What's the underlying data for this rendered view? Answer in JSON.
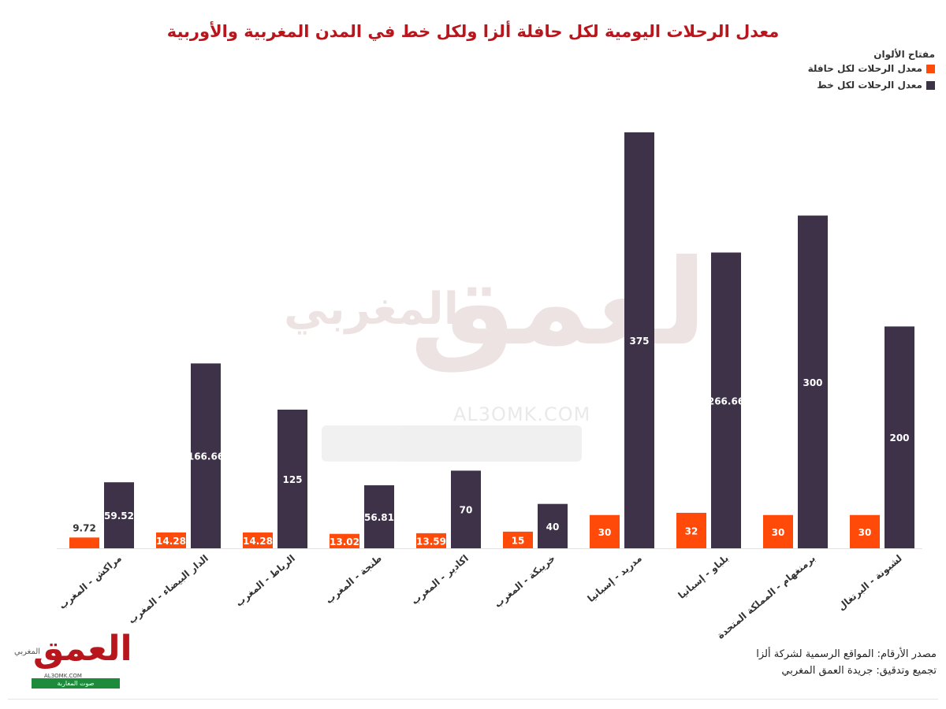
{
  "colors": {
    "title": "#b8161c",
    "bus": "#ff4a0a",
    "line": "#3e3249",
    "text": "#222222"
  },
  "legend": {
    "title": "مفتاح الألوان",
    "bus_label": "معدل الرحلات لكل حافلة",
    "line_label": "معدل الرحلات لكل خط"
  },
  "watermark": {
    "brand_small": "المغربي",
    "brand_large": "العمق",
    "url": "AL3OMK.COM"
  },
  "source": {
    "line1": "مصدر الأرقام: المواقع الرسمية لشركة ألزا",
    "line2": "تجميع وتدقيق: جريدة العمق المغربي"
  },
  "logo": {
    "word": "العمق",
    "small": "المغربي",
    "url": "AL3OMK.COM",
    "tagline": "صوت المغاربة"
  },
  "chart_data": {
    "type": "bar",
    "title": "معدل الرحلات اليومية لكل حافلة ألزا ولكل خط في المدن المغربية والأوربية",
    "categories": [
      "مراكش - المغرب",
      "الدار البيضاء - المغرب",
      "الرباط - المغرب",
      "طنجة - المغرب",
      "اكادير - المغرب",
      "خريبكة - المغرب",
      "مدريد - إسبانيا",
      "بلباو - إسبانيا",
      "برمنغهام - المملكة المتحدة",
      "لشبونة - البرتغال"
    ],
    "series": [
      {
        "name": "معدل الرحلات لكل حافلة",
        "values": [
          9.72,
          14.28,
          14.28,
          13.02,
          13.59,
          15,
          30,
          32,
          30,
          30
        ],
        "labels": [
          "9.72",
          "14.28",
          "14.28",
          "13.02",
          "13.59",
          "15",
          "30",
          "32",
          "30",
          "30"
        ]
      },
      {
        "name": "معدل الرحلات لكل خط",
        "values": [
          59.52,
          166.66,
          125,
          56.81,
          70,
          40,
          375,
          266.66,
          300,
          200
        ],
        "labels": [
          "59.52",
          "166.66",
          "125",
          "56.81",
          "70",
          "40",
          "375",
          "266.66",
          "300",
          "200"
        ]
      }
    ],
    "ylim": [
      0,
      375
    ],
    "grid": false,
    "legend_position": "top-right"
  }
}
